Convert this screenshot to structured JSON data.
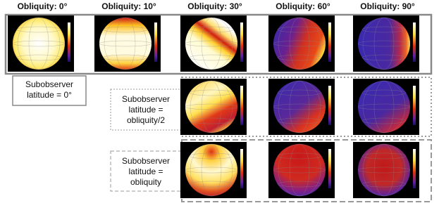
{
  "columns": [
    "Obliquity:  0°",
    "Obliquity: 10°",
    "Obliquity: 30°",
    "Obliquity: 60°",
    "Obliquity: 90°"
  ],
  "rows": [
    {
      "label": [
        "Subobserver",
        "latitude = 0°"
      ]
    },
    {
      "label": [
        "Subobserver",
        "latitude =",
        "obliquity/2"
      ]
    },
    {
      "label": [
        "Subobserver",
        "latitude =",
        "obliquity"
      ]
    }
  ]
}
